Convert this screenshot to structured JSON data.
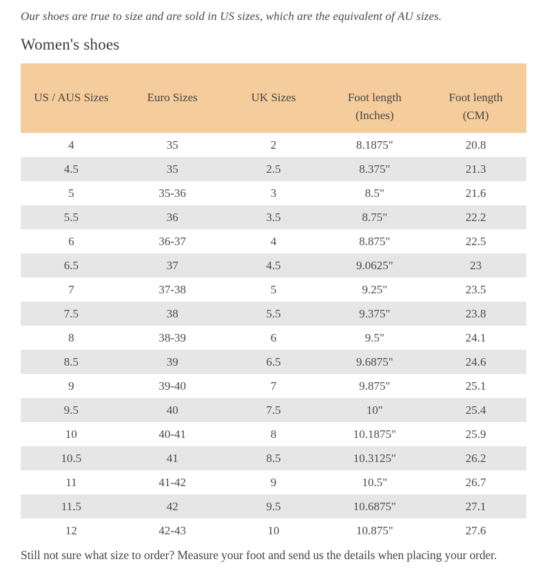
{
  "page": {
    "intro": "Our shoes are true to size and are sold in US sizes, which are the equivalent of AU sizes.",
    "heading": "Women's shoes",
    "footer_note": "Still not sure what size to order? Measure your foot and send us the details when placing your order."
  },
  "colors": {
    "header_background": "#f5cc9b",
    "row_stripe": "#e6e6e6",
    "text": "#474747",
    "page_background": "#ffffff"
  },
  "table": {
    "columns": [
      {
        "label": "US / AUS Sizes",
        "sub": ""
      },
      {
        "label": "Euro Sizes",
        "sub": ""
      },
      {
        "label": "UK Sizes",
        "sub": ""
      },
      {
        "label": "Foot length",
        "sub": "(Inches)"
      },
      {
        "label": "Foot length",
        "sub": "(CM)"
      }
    ],
    "rows": [
      [
        "4",
        "35",
        "2",
        "8.1875\"",
        "20.8"
      ],
      [
        "4.5",
        "35",
        "2.5",
        "8.375\"",
        "21.3"
      ],
      [
        "5",
        "35-36",
        "3",
        "8.5\"",
        "21.6"
      ],
      [
        "5.5",
        "36",
        "3.5",
        "8.75\"",
        "22.2"
      ],
      [
        "6",
        "36-37",
        "4",
        "8.875\"",
        "22.5"
      ],
      [
        "6.5",
        "37",
        "4.5",
        "9.0625\"",
        "23"
      ],
      [
        "7",
        "37-38",
        "5",
        "9.25\"",
        "23.5"
      ],
      [
        "7.5",
        "38",
        "5.5",
        "9.375\"",
        "23.8"
      ],
      [
        "8",
        "38-39",
        "6",
        "9.5\"",
        "24.1"
      ],
      [
        "8.5",
        "39",
        "6.5",
        "9.6875\"",
        "24.6"
      ],
      [
        "9",
        "39-40",
        "7",
        "9.875\"",
        "25.1"
      ],
      [
        "9.5",
        "40",
        "7.5",
        "10\"",
        "25.4"
      ],
      [
        "10",
        "40-41",
        "8",
        "10.1875\"",
        "25.9"
      ],
      [
        "10.5",
        "41",
        "8.5",
        "10.3125\"",
        "26.2"
      ],
      [
        "11",
        "41-42",
        "9",
        "10.5\"",
        "26.7"
      ],
      [
        "11.5",
        "42",
        "9.5",
        "10.6875\"",
        "27.1"
      ],
      [
        "12",
        "42-43",
        "10",
        "10.875\"",
        "27.6"
      ]
    ]
  }
}
